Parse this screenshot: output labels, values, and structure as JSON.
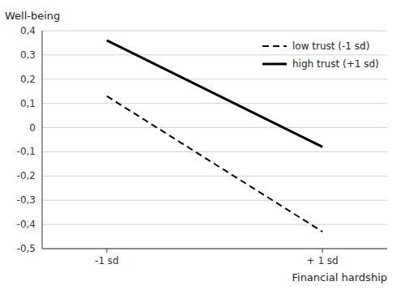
{
  "chart_data": {
    "type": "line",
    "xlabel": "Financial hardship",
    "ylabel": "Well-being",
    "x": [
      -1,
      1
    ],
    "series": [
      {
        "name": "low trust (-1 sd)",
        "color": "#000000",
        "line_style": "dashed",
        "values": [
          0.13,
          -0.43
        ]
      },
      {
        "name": "high trust (+1 sd)",
        "color": "#000000",
        "line_style": "solid",
        "values": [
          0.36,
          -0.08
        ]
      }
    ],
    "xlim": [
      -1.6,
      1.6
    ],
    "xticks": [
      {
        "value": -1,
        "label": "-1 sd"
      },
      {
        "value": 1,
        "label": "+ 1 sd"
      }
    ],
    "ylim": [
      -0.5,
      0.4
    ],
    "yticks": [
      {
        "value": -0.5,
        "label": "-0,5"
      },
      {
        "value": -0.4,
        "label": "-0,4"
      },
      {
        "value": -0.3,
        "label": "-0,3"
      },
      {
        "value": -0.2,
        "label": "-0,2"
      },
      {
        "value": -0.1,
        "label": "-0,1"
      },
      0,
      {
        "value": 0.1,
        "label": "0,1"
      },
      {
        "value": 0.2,
        "label": "0,2"
      },
      {
        "value": 0.3,
        "label": "0,3"
      },
      {
        "value": 0.4,
        "label": "0,4"
      }
    ],
    "grid": true,
    "legend": "upper right"
  }
}
